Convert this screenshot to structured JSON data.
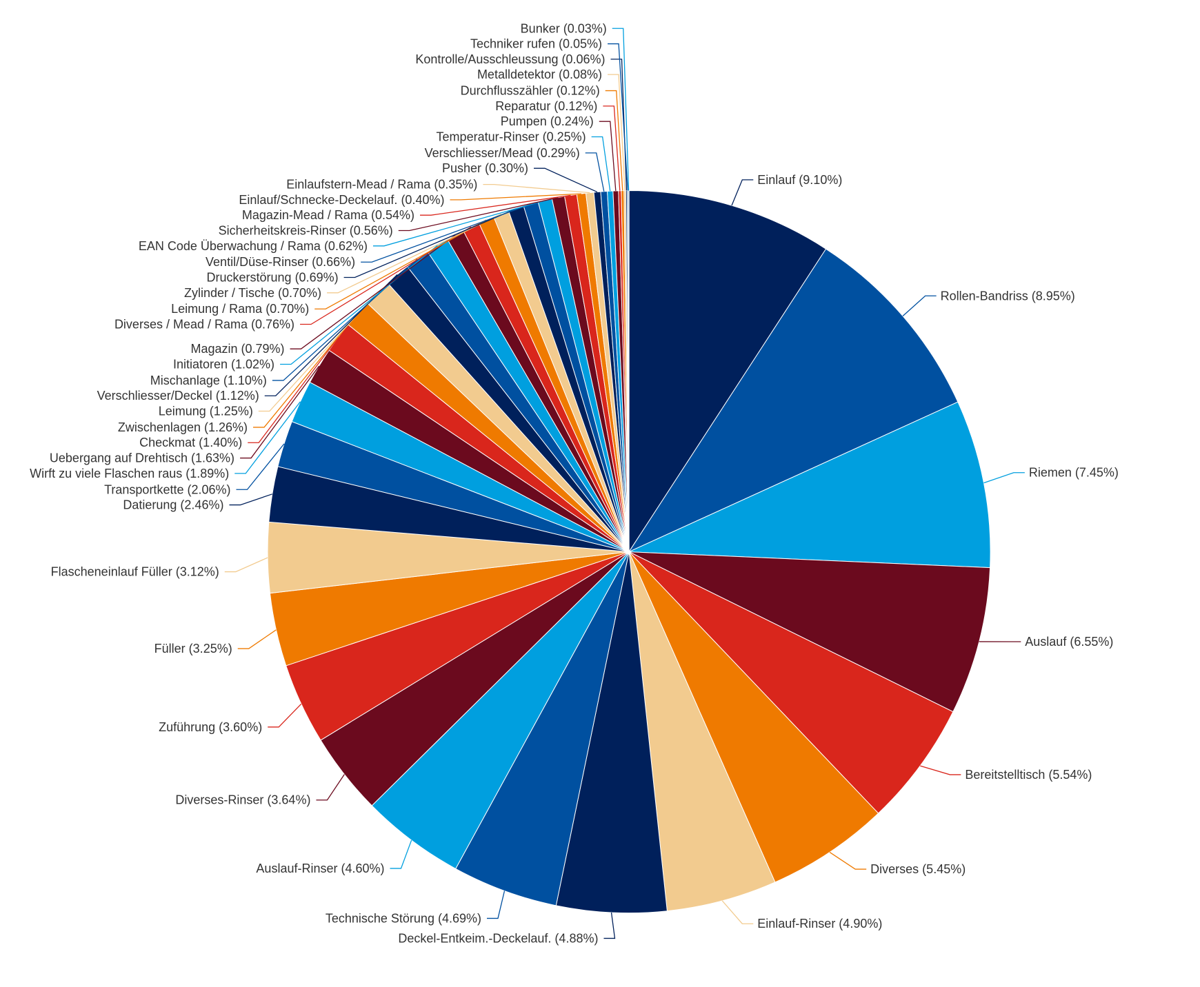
{
  "chart_data": {
    "type": "pie",
    "title": "",
    "start": "top, clockwise, descending",
    "colors": [
      "#00205b",
      "#0050a0",
      "#009fdf",
      "#6b0a1e",
      "#d9261c",
      "#ef7a00",
      "#f2cb8f"
    ],
    "slices": [
      {
        "name": "Einlauf",
        "value": 9.1,
        "label": "Einlauf (9.10%)"
      },
      {
        "name": "Rollen-Bandriss",
        "value": 8.95,
        "label": "Rollen-Bandriss (8.95%)"
      },
      {
        "name": "Riemen",
        "value": 7.45,
        "label": "Riemen (7.45%)"
      },
      {
        "name": "Auslauf",
        "value": 6.55,
        "label": "Auslauf (6.55%)"
      },
      {
        "name": "Bereitstelltisch",
        "value": 5.54,
        "label": "Bereitstelltisch (5.54%)"
      },
      {
        "name": "Diverses",
        "value": 5.45,
        "label": "Diverses (5.45%)"
      },
      {
        "name": "Einlauf-Rinser",
        "value": 4.9,
        "label": "Einlauf-Rinser (4.90%)"
      },
      {
        "name": "Deckel-Entkeim.-Deckelauf.",
        "value": 4.88,
        "label": "Deckel-Entkeim.-Deckelauf. (4.88%)"
      },
      {
        "name": "Technische Störung",
        "value": 4.69,
        "label": "Technische Störung (4.69%)"
      },
      {
        "name": "Auslauf-Rinser",
        "value": 4.6,
        "label": "Auslauf-Rinser (4.60%)"
      },
      {
        "name": "Diverses-Rinser",
        "value": 3.64,
        "label": "Diverses-Rinser (3.64%)"
      },
      {
        "name": "Zuführung",
        "value": 3.6,
        "label": "Zuführung (3.60%)"
      },
      {
        "name": "Füller",
        "value": 3.25,
        "label": "Füller (3.25%)"
      },
      {
        "name": "Flascheneinlauf Füller",
        "value": 3.12,
        "label": "Flascheneinlauf Füller (3.12%)"
      },
      {
        "name": "Datierung",
        "value": 2.46,
        "label": "Datierung (2.46%)"
      },
      {
        "name": "Transportkette",
        "value": 2.06,
        "label": "Transportkette (2.06%)"
      },
      {
        "name": "Wirft zu viele Flaschen raus",
        "value": 1.89,
        "label": "Wirft zu viele Flaschen raus (1.89%)"
      },
      {
        "name": "Uebergang auf Drehtisch",
        "value": 1.63,
        "label": "Uebergang auf Drehtisch (1.63%)"
      },
      {
        "name": "Checkmat",
        "value": 1.4,
        "label": "Checkmat (1.40%)"
      },
      {
        "name": "Zwischenlagen",
        "value": 1.26,
        "label": "Zwischenlagen (1.26%)"
      },
      {
        "name": "Leimung",
        "value": 1.25,
        "label": "Leimung (1.25%)"
      },
      {
        "name": "Verschliesser/Deckel",
        "value": 1.12,
        "label": "Verschliesser/Deckel (1.12%)"
      },
      {
        "name": "Mischanlage",
        "value": 1.1,
        "label": "Mischanlage (1.10%)"
      },
      {
        "name": "Initiatoren",
        "value": 1.02,
        "label": "Initiatoren (1.02%)"
      },
      {
        "name": "Magazin",
        "value": 0.79,
        "label": "Magazin (0.79%)"
      },
      {
        "name": "Diverses / Mead / Rama",
        "value": 0.76,
        "label": "Diverses / Mead / Rama (0.76%)"
      },
      {
        "name": "Leimung / Rama",
        "value": 0.7,
        "label": "Leimung / Rama (0.70%)"
      },
      {
        "name": "Zylinder / Tische",
        "value": 0.7,
        "label": "Zylinder / Tische (0.70%)"
      },
      {
        "name": "Druckerstörung",
        "value": 0.69,
        "label": "Druckerstörung (0.69%)"
      },
      {
        "name": "Ventil/Düse-Rinser",
        "value": 0.66,
        "label": "Ventil/Düse-Rinser (0.66%)"
      },
      {
        "name": "EAN Code Überwachung / Rama",
        "value": 0.62,
        "label": "EAN Code Überwachung / Rama (0.62%)"
      },
      {
        "name": "Sicherheitskreis-Rinser",
        "value": 0.56,
        "label": "Sicherheitskreis-Rinser (0.56%)"
      },
      {
        "name": "Magazin-Mead / Rama",
        "value": 0.54,
        "label": "Magazin-Mead / Rama (0.54%)"
      },
      {
        "name": "Einlauf/Schnecke-Deckelauf.",
        "value": 0.4,
        "label": "Einlauf/Schnecke-Deckelauf. (0.40%)"
      },
      {
        "name": "Einlaufstern-Mead / Rama",
        "value": 0.35,
        "label": "Einlaufstern-Mead / Rama (0.35%)"
      },
      {
        "name": "Pusher",
        "value": 0.3,
        "label": "Pusher (0.30%)"
      },
      {
        "name": "Verschliesser/Mead",
        "value": 0.29,
        "label": "Verschliesser/Mead (0.29%)"
      },
      {
        "name": "Temperatur-Rinser",
        "value": 0.25,
        "label": "Temperatur-Rinser (0.25%)"
      },
      {
        "name": "Pumpen",
        "value": 0.24,
        "label": "Pumpen (0.24%)"
      },
      {
        "name": "Reparatur",
        "value": 0.12,
        "label": "Reparatur (0.12%)"
      },
      {
        "name": "Durchflusszähler",
        "value": 0.12,
        "label": "Durchflusszähler (0.12%)"
      },
      {
        "name": "Metalldetektor",
        "value": 0.08,
        "label": "Metalldetektor (0.08%)"
      },
      {
        "name": "Kontrolle/Ausschleussung",
        "value": 0.06,
        "label": "Kontrolle/Ausschleussung (0.06%)"
      },
      {
        "name": "Techniker rufen",
        "value": 0.05,
        "label": "Techniker rufen (0.05%)"
      },
      {
        "name": "Bunker",
        "value": 0.03,
        "label": "Bunker (0.03%)"
      }
    ]
  }
}
